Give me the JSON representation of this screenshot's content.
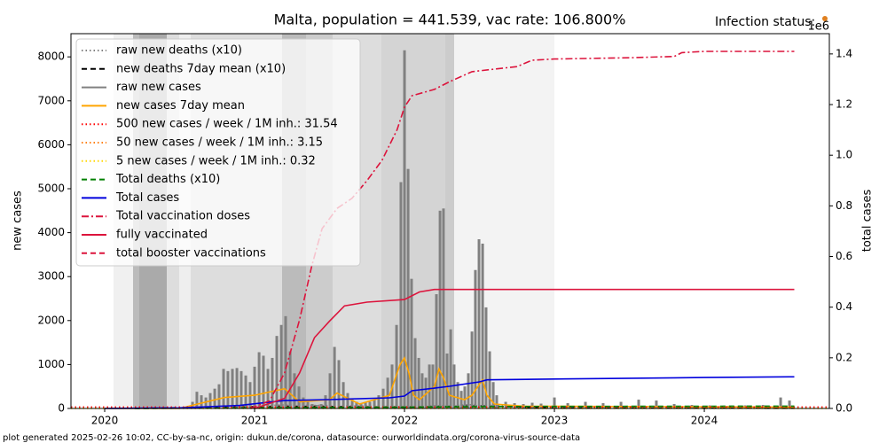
{
  "chart_data": {
    "type": "line",
    "title": "Malta, population = 441.539, vac rate: 106.800%",
    "status_label": "Infection status: ",
    "y2_offset_label": "1e6",
    "ylabel": "new cases",
    "y2label": "total cases",
    "footer": "plot generated 2025-02-26 10:02, CC-by-sa-nc, origin: dukun.de/corona, datasource: ourworldindata.org/corona-virus-source-data",
    "xlim": [
      2019.775,
      2024.834
    ],
    "xticks": [
      2020,
      2021,
      2022,
      2023,
      2024
    ],
    "ylim": [
      0,
      8528
    ],
    "yticks": [
      0,
      1000,
      2000,
      3000,
      4000,
      5000,
      6000,
      7000,
      8000
    ],
    "y2lim": [
      0,
      1.48
    ],
    "y2ticks": [
      {
        "value": 0,
        "label": "0.0"
      },
      0.2,
      0.4,
      0.6,
      0.8,
      {
        "value": 1,
        "label": "1.0"
      },
      1.2,
      1.4
    ],
    "legend": "upper left",
    "series": [
      {
        "name": "raw new deaths (x10)",
        "color": "#808080",
        "style": "dotted",
        "x": [
          2020.2,
          2021.0,
          2021.2,
          2022.0,
          2022.5,
          2023.0,
          2024.6
        ],
        "values": [
          0,
          60,
          80,
          40,
          90,
          20,
          10
        ]
      },
      {
        "name": "new deaths 7day mean (x10)",
        "color": "#000000",
        "style": "dashed",
        "x": [
          2020.2,
          2021.0,
          2021.2,
          2022.0,
          2022.5,
          2023.0,
          2024.6
        ],
        "values": [
          0,
          40,
          50,
          30,
          60,
          10,
          5
        ]
      },
      {
        "name": "raw new cases",
        "color": "#808080",
        "style": "bar",
        "x": [
          2020.586,
          2020.615,
          2020.645,
          2020.675,
          2020.704,
          2020.734,
          2020.763,
          2020.793,
          2020.822,
          2020.852,
          2020.882,
          2020.911,
          2020.941,
          2020.97,
          2021.0,
          2021.03,
          2021.059,
          2021.089,
          2021.118,
          2021.148,
          2021.178,
          2021.207,
          2021.237,
          2021.266,
          2021.296,
          2021.325,
          2021.355,
          2021.385,
          2021.414,
          2021.444,
          2021.473,
          2021.503,
          2021.533,
          2021.562,
          2021.592,
          2021.621,
          2021.651,
          2021.68,
          2021.71,
          2021.74,
          2021.769,
          2021.799,
          2021.828,
          2021.858,
          2021.888,
          2021.917,
          2021.947,
          2021.976,
          2022.0,
          2022.024,
          2022.047,
          2022.071,
          2022.095,
          2022.118,
          2022.142,
          2022.166,
          2022.189,
          2022.213,
          2022.237,
          2022.26,
          2022.284,
          2022.308,
          2022.331,
          2022.355,
          2022.379,
          2022.402,
          2022.426,
          2022.45,
          2022.473,
          2022.497,
          2022.521,
          2022.544,
          2022.568,
          2022.592,
          2022.615,
          2022.675,
          2022.734,
          2022.793,
          2022.852,
          2022.911,
          2023.0,
          2023.089,
          2023.207,
          2023.325,
          2023.444,
          2023.562,
          2023.68,
          2023.799,
          2023.917,
          2024.036,
          2024.154,
          2024.272,
          2024.391,
          2024.509,
          2024.568
        ],
        "values": [
          150,
          380,
          300,
          250,
          350,
          450,
          550,
          900,
          850,
          900,
          920,
          850,
          750,
          600,
          950,
          1280,
          1200,
          900,
          1150,
          1650,
          1900,
          2100,
          1300,
          800,
          500,
          250,
          150,
          100,
          80,
          100,
          300,
          800,
          1400,
          1100,
          600,
          350,
          200,
          150,
          120,
          130,
          150,
          200,
          300,
          450,
          700,
          1000,
          1900,
          5150,
          8150,
          5450,
          2950,
          1600,
          1150,
          800,
          700,
          1000,
          1000,
          2600,
          4500,
          4550,
          1250,
          1800,
          1000,
          600,
          400,
          500,
          800,
          1750,
          3150,
          3850,
          3750,
          2300,
          1300,
          600,
          300,
          150,
          120,
          100,
          130,
          110,
          250,
          120,
          150,
          120,
          150,
          200,
          180,
          100,
          80,
          70,
          60,
          70,
          80,
          250,
          180
        ]
      },
      {
        "name": "new cases 7day mean",
        "color": "#ffa500",
        "style": "solid",
        "x": [
          2020.0,
          2020.5,
          2020.8,
          2021.0,
          2021.2,
          2021.3,
          2021.5,
          2021.55,
          2021.7,
          2021.9,
          2021.97,
          2022.0,
          2022.03,
          2022.06,
          2022.1,
          2022.2,
          2022.23,
          2022.26,
          2022.3,
          2022.4,
          2022.45,
          2022.5,
          2022.52,
          2022.55,
          2022.6,
          2022.8,
          2023.0,
          2024.6
        ],
        "values": [
          0,
          0,
          250,
          300,
          450,
          150,
          200,
          350,
          100,
          300,
          1000,
          1150,
          800,
          300,
          200,
          500,
          900,
          700,
          300,
          200,
          300,
          550,
          650,
          300,
          100,
          50,
          50,
          30
        ]
      },
      {
        "name": "500 new cases / week / 1M inh.: 31.54",
        "color": "#ff0000",
        "style": "dotted",
        "value": 31.54
      },
      {
        "name": "50 new cases / week / 1M inh.: 3.15",
        "color": "#ff7f0e",
        "style": "dotted",
        "value": 3.15
      },
      {
        "name": "5 new cases / week / 1M inh.: 0.32",
        "color": "#ffd700",
        "style": "dotted",
        "value": 0.32
      },
      {
        "name": "Total deaths (x10)",
        "color": "#008000",
        "style": "dashed",
        "axis": "y2",
        "x": [
          2020.2,
          2021.0,
          2021.5,
          2022.0,
          2022.5,
          2023.0,
          2024.6
        ],
        "values": [
          0,
          0.0023,
          0.0042,
          0.0048,
          0.0075,
          0.0082,
          0.009
        ]
      },
      {
        "name": "Total cases",
        "color": "#0000dd",
        "style": "solid",
        "axis": "y2",
        "x": [
          2020.0,
          2020.5,
          2020.9,
          2021.2,
          2021.5,
          2021.9,
          2022.0,
          2022.05,
          2022.2,
          2022.3,
          2022.5,
          2022.55,
          2023.0,
          2024.0,
          2024.6
        ],
        "values": [
          0,
          0.002,
          0.012,
          0.031,
          0.035,
          0.042,
          0.049,
          0.07,
          0.08,
          0.0875,
          0.105,
          0.113,
          0.116,
          0.122,
          0.125
        ]
      },
      {
        "name": "Total vaccination doses",
        "color": "#dc143c",
        "style": "dashdot",
        "axis": "y2",
        "x": [
          2020.97,
          2021.1,
          2021.2,
          2021.3,
          2021.38,
          2021.45,
          2021.55,
          2021.65,
          2021.75,
          2021.85,
          2021.95,
          2022.0,
          2022.05,
          2022.2,
          2022.3,
          2022.45,
          2022.6,
          2022.75,
          2022.85,
          2023.0,
          2023.5,
          2023.8,
          2023.85,
          2024.0,
          2024.6
        ],
        "values": [
          0,
          0.03,
          0.14,
          0.35,
          0.56,
          0.71,
          0.79,
          0.83,
          0.9,
          0.98,
          1.1,
          1.19,
          1.235,
          1.26,
          1.29,
          1.33,
          1.34,
          1.35,
          1.375,
          1.38,
          1.385,
          1.39,
          1.405,
          1.41,
          1.41
        ]
      },
      {
        "name": "fully vaccinated",
        "color": "#dc143c",
        "style": "solid",
        "axis": "y2",
        "x": [
          2021.0,
          2021.2,
          2021.3,
          2021.4,
          2021.5,
          2021.6,
          2021.75,
          2022.0,
          2022.1,
          2022.2,
          2024.6
        ],
        "values": [
          0,
          0.04,
          0.14,
          0.28,
          0.345,
          0.405,
          0.42,
          0.43,
          0.46,
          0.47,
          0.47
        ]
      },
      {
        "name": "total booster vaccinations",
        "color": "#dc143c",
        "style": "dashed",
        "axis": "y2"
      }
    ]
  }
}
